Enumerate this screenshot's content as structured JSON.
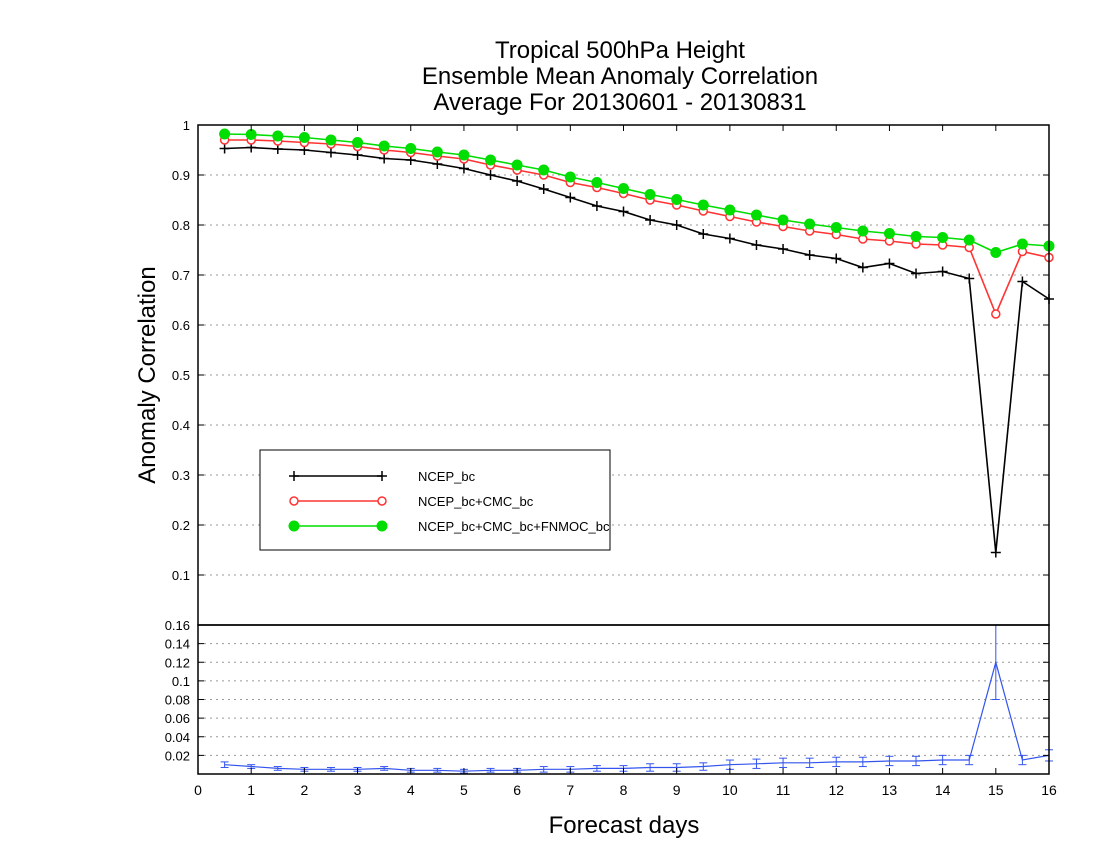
{
  "chart_data": [
    {
      "type": "line",
      "title": [
        "Tropical 500hPa Height",
        "Ensemble Mean Anomaly Correlation",
        "Average For 20130601 - 20130831"
      ],
      "xlabel": "Forecast days",
      "ylabel": "Anomaly Correlation",
      "xlim": [
        0,
        16
      ],
      "ylim": [
        0,
        1
      ],
      "yticks": [
        "0.1",
        "0.2",
        "0.3",
        "0.4",
        "0.5",
        "0.6",
        "0.7",
        "0.8",
        "0.9",
        "1"
      ],
      "grid": true,
      "legend_position": "lower-left",
      "x": [
        0.5,
        1,
        1.5,
        2,
        2.5,
        3,
        3.5,
        4,
        4.5,
        5,
        5.5,
        6,
        6.5,
        7,
        7.5,
        8,
        8.5,
        9,
        9.5,
        10,
        10.5,
        11,
        11.5,
        12,
        12.5,
        13,
        13.5,
        14,
        14.5,
        15,
        15.5,
        16
      ],
      "series": [
        {
          "name": "NCEP_bc",
          "color": "#000000",
          "marker": "plus",
          "values": [
            0.953,
            0.955,
            0.952,
            0.95,
            0.945,
            0.94,
            0.933,
            0.93,
            0.922,
            0.913,
            0.9,
            0.888,
            0.872,
            0.855,
            0.838,
            0.827,
            0.81,
            0.8,
            0.782,
            0.773,
            0.76,
            0.752,
            0.74,
            0.733,
            0.715,
            0.723,
            0.703,
            0.707,
            0.693,
            0.145,
            0.687,
            0.652
          ]
        },
        {
          "name": "NCEP_bc+CMC_bc",
          "color": "#ff3333",
          "marker": "open-circle",
          "values": [
            0.97,
            0.97,
            0.968,
            0.965,
            0.962,
            0.957,
            0.95,
            0.945,
            0.938,
            0.932,
            0.92,
            0.91,
            0.9,
            0.885,
            0.875,
            0.863,
            0.85,
            0.84,
            0.828,
            0.817,
            0.806,
            0.797,
            0.788,
            0.781,
            0.772,
            0.768,
            0.762,
            0.76,
            0.755,
            0.622,
            0.747,
            0.735
          ]
        },
        {
          "name": "NCEP_bc+CMC_bc+FNMOC_bc",
          "color": "#00dd00",
          "marker": "filled-circle",
          "values": [
            0.982,
            0.981,
            0.978,
            0.975,
            0.97,
            0.965,
            0.958,
            0.953,
            0.946,
            0.94,
            0.93,
            0.92,
            0.91,
            0.896,
            0.885,
            0.873,
            0.861,
            0.851,
            0.84,
            0.83,
            0.82,
            0.81,
            0.802,
            0.795,
            0.788,
            0.783,
            0.777,
            0.775,
            0.77,
            0.745,
            0.762,
            0.758
          ]
        }
      ]
    },
    {
      "type": "line",
      "xlabel": "Forecast days",
      "xlim": [
        0,
        16
      ],
      "xticks": [
        "0",
        "1",
        "2",
        "3",
        "4",
        "5",
        "6",
        "7",
        "8",
        "9",
        "10",
        "11",
        "12",
        "13",
        "14",
        "15",
        "16"
      ],
      "ylim": [
        0,
        0.16
      ],
      "yticks": [
        "0.02",
        "0.04",
        "0.06",
        "0.08",
        "0.1",
        "0.12",
        "0.14",
        "0.16"
      ],
      "grid": true,
      "x": [
        0.5,
        1,
        1.5,
        2,
        2.5,
        3,
        3.5,
        4,
        4.5,
        5,
        5.5,
        6,
        6.5,
        7,
        7.5,
        8,
        8.5,
        9,
        9.5,
        10,
        10.5,
        11,
        11.5,
        12,
        12.5,
        13,
        13.5,
        14,
        14.5,
        15,
        15.5,
        16
      ],
      "series": [
        {
          "color": "#3355ee",
          "marker": "error-bar",
          "values": [
            0.01,
            0.008,
            0.006,
            0.005,
            0.005,
            0.005,
            0.006,
            0.004,
            0.004,
            0.003,
            0.004,
            0.004,
            0.005,
            0.005,
            0.006,
            0.006,
            0.007,
            0.007,
            0.008,
            0.01,
            0.011,
            0.012,
            0.012,
            0.013,
            0.013,
            0.014,
            0.014,
            0.015,
            0.015,
            0.12,
            0.015,
            0.02
          ],
          "error": [
            0.003,
            0.002,
            0.002,
            0.002,
            0.002,
            0.002,
            0.002,
            0.002,
            0.002,
            0.002,
            0.002,
            0.002,
            0.003,
            0.003,
            0.003,
            0.003,
            0.004,
            0.004,
            0.004,
            0.005,
            0.005,
            0.005,
            0.005,
            0.005,
            0.005,
            0.005,
            0.005,
            0.005,
            0.005,
            0.04,
            0.005,
            0.006
          ]
        }
      ]
    }
  ]
}
